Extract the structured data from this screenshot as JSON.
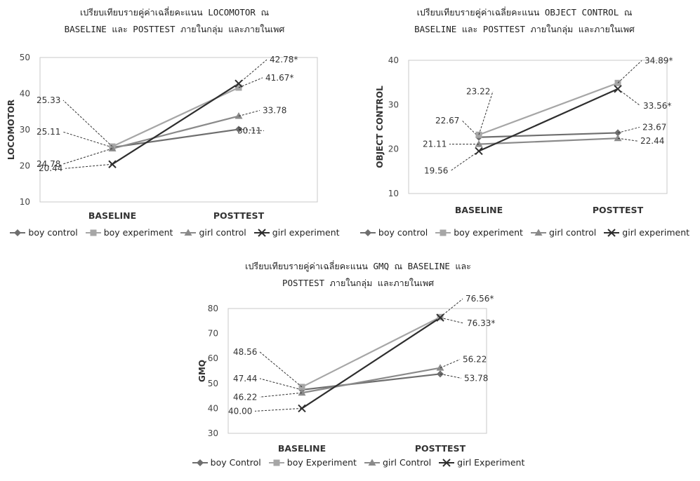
{
  "chart_data": [
    {
      "type": "line",
      "title_lines": [
        "เปรียบเทียบรายคู่ค่าเฉลี่ยคะแนน LOCOMOTOR ณ",
        "BASELINE และ POSTTEST ภายในกลุ่ม และภายในเพศ"
      ],
      "ylabel": "LOCOMOTOR",
      "xlabel": "",
      "categories": [
        "BASELINE",
        "POSTTEST"
      ],
      "ylim": [
        10,
        50
      ],
      "yticks": [
        10,
        20,
        30,
        40,
        50
      ],
      "grid": false,
      "legend": "bottom",
      "series": [
        {
          "name": "boy control",
          "marker": "diamond",
          "color": "#6e6e6e",
          "values": [
            25.11,
            30.11
          ],
          "labels": [
            "25.11",
            "30.11"
          ]
        },
        {
          "name": "boy experiment",
          "marker": "square",
          "color": "#a6a6a6",
          "values": [
            25.33,
            41.67
          ],
          "labels": [
            "25.33",
            "41.67*"
          ]
        },
        {
          "name": "girl control",
          "marker": "triangle",
          "color": "#8a8a8a",
          "values": [
            24.78,
            33.78
          ],
          "labels": [
            "24.78",
            "33.78"
          ]
        },
        {
          "name": "girl experiment",
          "marker": "x",
          "color": "#2e2e2e",
          "values": [
            20.44,
            42.78
          ],
          "labels": [
            "20.44",
            "42.78*"
          ]
        }
      ]
    },
    {
      "type": "line",
      "title_lines": [
        "เปรียบเทียบรายคู่ค่าเฉลี่ยคะแนน OBJECT CONTROL ณ",
        "BASELINE และ POSTTEST ภายในกลุ่ม และภายในเพศ"
      ],
      "ylabel": "OBJECT CONTROL",
      "xlabel": "",
      "categories": [
        "BASELINE",
        "POSTTEST"
      ],
      "ylim": [
        10,
        40
      ],
      "yticks": [
        10,
        20,
        30,
        40
      ],
      "grid": false,
      "legend": "bottom",
      "series": [
        {
          "name": "boy control",
          "marker": "diamond",
          "color": "#6e6e6e",
          "values": [
            22.67,
            23.67
          ],
          "labels": [
            "22.67",
            "23.67"
          ]
        },
        {
          "name": "boy experiment",
          "marker": "square",
          "color": "#a6a6a6",
          "values": [
            23.22,
            34.89
          ],
          "labels": [
            "23.22",
            "34.89*"
          ]
        },
        {
          "name": "girl control",
          "marker": "triangle",
          "color": "#8a8a8a",
          "values": [
            21.11,
            22.44
          ],
          "labels": [
            "21.11",
            "22.44"
          ]
        },
        {
          "name": "girl experiment",
          "marker": "x",
          "color": "#2e2e2e",
          "values": [
            19.56,
            33.56
          ],
          "labels": [
            "19.56",
            "33.56*"
          ]
        }
      ]
    },
    {
      "type": "line",
      "title_lines": [
        "เปรียบเทียบรายคู่ค่าเฉลี่ยคะแนน GMQ ณ BASELINE และ",
        "POSTTEST ภายในกลุ่ม และภายในเพศ"
      ],
      "ylabel": "GMQ",
      "xlabel": "",
      "categories": [
        "BASELINE",
        "POSTTEST"
      ],
      "ylim": [
        30,
        80
      ],
      "yticks": [
        30,
        40,
        50,
        60,
        70,
        80
      ],
      "grid": false,
      "legend": "bottom",
      "series": [
        {
          "name": "boy Control",
          "marker": "diamond",
          "color": "#6e6e6e",
          "values": [
            47.44,
            53.78
          ],
          "labels": [
            "47.44",
            "53.78"
          ]
        },
        {
          "name": "boy Experiment",
          "marker": "square",
          "color": "#a6a6a6",
          "values": [
            48.56,
            76.56
          ],
          "labels": [
            "48.56",
            "76.56*"
          ]
        },
        {
          "name": "girl Control",
          "marker": "triangle",
          "color": "#8a8a8a",
          "values": [
            46.22,
            56.22
          ],
          "labels": [
            "46.22",
            "56.22"
          ]
        },
        {
          "name": "girl Experiment",
          "marker": "x",
          "color": "#2e2e2e",
          "values": [
            40.0,
            76.33
          ],
          "labels": [
            "40.00",
            "76.33*"
          ]
        }
      ]
    }
  ]
}
